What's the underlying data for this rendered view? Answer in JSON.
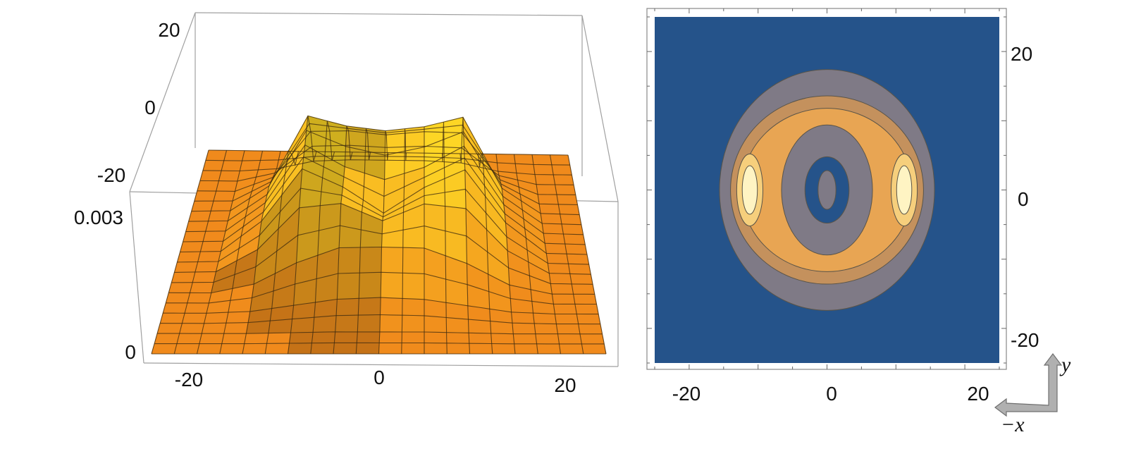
{
  "chart_data": [
    {
      "type": "surface",
      "title": "",
      "xlabel": "",
      "ylabel": "",
      "zlabel": "",
      "x_ticks": [
        "-20",
        "0",
        "20"
      ],
      "y_ticks": [
        "20",
        "0",
        "-20"
      ],
      "z_ticks": [
        "0.003",
        "0"
      ],
      "xlim": [
        -25,
        25
      ],
      "ylim": [
        -25,
        25
      ],
      "zlim": [
        0,
        0.003
      ],
      "surface_color": "#f5a623",
      "mesh_color": "#333333",
      "x": [
        -25,
        -20,
        -15,
        -10,
        -5,
        0,
        5,
        10,
        15,
        20,
        25
      ],
      "y": [
        -25,
        -20,
        -15,
        -10,
        -5,
        0,
        5,
        10,
        15,
        20,
        25
      ],
      "z": [
        [
          0,
          0,
          0,
          0,
          0,
          0,
          0,
          0,
          0,
          0,
          0
        ],
        [
          0,
          0,
          0,
          1e-05,
          2e-05,
          2e-05,
          2e-05,
          1e-05,
          0,
          0,
          0
        ],
        [
          0,
          0,
          2e-05,
          9e-05,
          0.00016,
          0.00018,
          0.00016,
          9e-05,
          2e-05,
          0,
          0
        ],
        [
          0,
          0,
          0.0001,
          0.00034,
          0.00051,
          0.00052,
          0.00051,
          0.00034,
          0.0001,
          0,
          0
        ],
        [
          0,
          1e-05,
          0.00026,
          0.00073,
          0.00078,
          0.00059,
          0.00078,
          0.00073,
          0.00026,
          1e-05,
          0
        ],
        [
          0,
          1e-05,
          0.00035,
          0.00094,
          0.00074,
          0.00045,
          0.00074,
          0.00094,
          0.00035,
          1e-05,
          0
        ],
        [
          0,
          1e-05,
          0.00033,
          0.00098,
          0.00074,
          0.0006,
          0.00074,
          0.00098,
          0.00033,
          1e-05,
          0
        ],
        [
          0,
          1e-05,
          0.00029,
          0.00108,
          0.00097,
          0.00092,
          0.00097,
          0.00108,
          0.00029,
          1e-05,
          0
        ],
        [
          0,
          0,
          0.00016,
          0.00068,
          0.00069,
          0.00065,
          0.00069,
          0.00068,
          0.00016,
          0,
          0
        ],
        [
          0,
          0,
          3e-05,
          0.00012,
          0.00014,
          0.00014,
          0.00014,
          0.00012,
          3e-05,
          0,
          0
        ],
        [
          0,
          0,
          0,
          0,
          0,
          0,
          0,
          0,
          0,
          0,
          0
        ]
      ]
    },
    {
      "type": "contour",
      "title": "",
      "xlabel": "",
      "ylabel": "",
      "x_ticks": [
        "-20",
        "0",
        "20"
      ],
      "y_ticks": [
        "20",
        "0",
        "-20"
      ],
      "xlim": [
        -25,
        25
      ],
      "ylim": [
        -25,
        25
      ],
      "contour_colors": [
        "#25538a",
        "#7f7a86",
        "#c4915d",
        "#e8a553",
        "#f6cf7c",
        "#fff4c3"
      ],
      "bands": [
        {
          "rx": 15.6,
          "ry": 17.4,
          "level": 1
        },
        {
          "rx": 14.0,
          "ry": 13.6,
          "level": 2
        },
        {
          "rx": 12.4,
          "ry": 11.8,
          "level": 3
        },
        {
          "rx": 6.6,
          "ry": 9.4,
          "level": 1
        },
        {
          "rx": 3.2,
          "ry": 4.8,
          "level": 0
        },
        {
          "rx": 1.3,
          "ry": 2.8,
          "level": 1
        },
        {
          "cx": -11.2,
          "rx": 1.9,
          "ry": 5.2,
          "level": 4
        },
        {
          "cx": 11.2,
          "rx": 1.9,
          "ry": 5.2,
          "level": 4
        },
        {
          "cx": -11.2,
          "rx": 1.1,
          "ry": 3.5,
          "level": 5
        },
        {
          "cx": 11.2,
          "rx": 1.1,
          "ry": 3.5,
          "level": 5
        }
      ]
    }
  ],
  "orientation": {
    "y_label": "y",
    "x_label": "−x"
  }
}
